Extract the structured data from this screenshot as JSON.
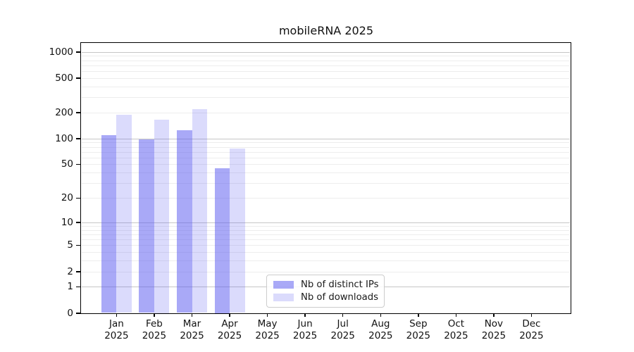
{
  "chart_data": {
    "type": "bar",
    "title": "mobileRNA 2025",
    "categories": [
      "Jan 2025",
      "Feb 2025",
      "Mar 2025",
      "Apr 2025",
      "May 2025",
      "Jun 2025",
      "Jul 2025",
      "Aug 2025",
      "Sep 2025",
      "Oct 2025",
      "Nov 2025",
      "Dec 2025"
    ],
    "series": [
      {
        "name": "Nb of distinct IPs",
        "color": "rgba(90,90,240,0.52)",
        "values": [
          110,
          97,
          125,
          45,
          0,
          0,
          0,
          0,
          0,
          0,
          0,
          0
        ]
      },
      {
        "name": "Nb of downloads",
        "color": "rgba(90,90,240,0.22)",
        "values": [
          189,
          167,
          218,
          76,
          0,
          0,
          0,
          0,
          0,
          0,
          0,
          0
        ]
      }
    ],
    "xlabel": "",
    "ylabel": "",
    "y_axis": {
      "scale": "log1p",
      "tick_values": [
        0,
        1,
        2,
        5,
        10,
        20,
        50,
        100,
        200,
        500,
        1000
      ],
      "tick_labels": [
        "0",
        "1",
        "2",
        "5",
        "10",
        "20",
        "50",
        "100",
        "200",
        "500",
        "1000"
      ],
      "ylim": [
        0,
        1280
      ],
      "major_grid_values": [
        1,
        10,
        100,
        1000
      ],
      "minor_grid_color": "#ededed",
      "major_grid_color": "#c6c6c6"
    },
    "grid": "on",
    "legend_position": "lower center",
    "background_color": "#ffffff"
  }
}
